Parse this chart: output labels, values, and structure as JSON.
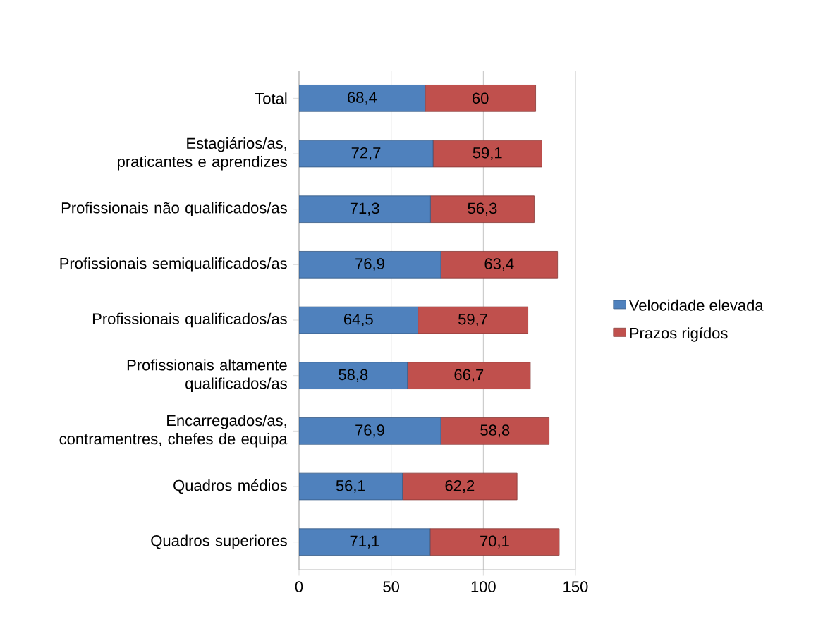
{
  "chart_data": {
    "type": "bar",
    "orientation": "horizontal",
    "stacked": true,
    "categories": [
      "Total",
      "Estagiários/as, praticantes e aprendizes",
      "Profissionais não qualificados/as",
      "Profissionais semiqualificados/as",
      "Profissionais qualificados/as",
      "Profissionais altamente qualificados/as",
      "Encarregados/as, contramentres, chefes de equipa",
      "Quadros médios",
      "Quadros superiores"
    ],
    "series": [
      {
        "name": "Velocidade elevada",
        "color": "#4f81bd",
        "values": [
          68.4,
          72.7,
          71.3,
          76.9,
          64.5,
          58.8,
          76.9,
          56.1,
          71.1
        ],
        "value_labels": [
          "68,4",
          "72,7",
          "71,3",
          "76,9",
          "64,5",
          "58,8",
          "76,9",
          "56,1",
          "71,1"
        ]
      },
      {
        "name": "Prazos rigídos",
        "color": "#c0504d",
        "values": [
          60,
          59.1,
          56.3,
          63.4,
          59.7,
          66.7,
          58.8,
          62.2,
          70.1
        ],
        "value_labels": [
          "60",
          "59,1",
          "56,3",
          "63,4",
          "59,7",
          "66,7",
          "58,8",
          "62,2",
          "70,1"
        ]
      }
    ],
    "xlim": [
      0,
      150
    ],
    "xticks": [
      0,
      50,
      100,
      150
    ],
    "grid": "x",
    "legend": "right"
  }
}
